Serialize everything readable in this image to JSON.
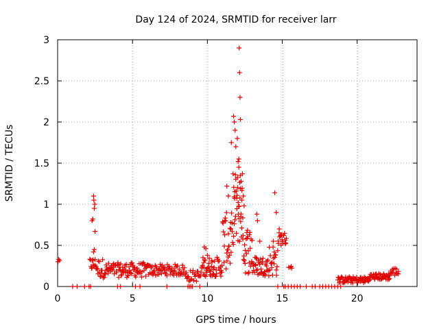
{
  "chart_data": {
    "type": "scatter",
    "title": "Day 124 of 2024, SRMTID for receiver larr",
    "xlabel": "GPS time / hours",
    "ylabel": "SRMTID / TECUs",
    "xlim": [
      0,
      24
    ],
    "ylim": [
      0,
      3
    ],
    "grid": true,
    "marker": "+",
    "series_color": "#e00000",
    "x_ticks": [
      0,
      5,
      10,
      15,
      20
    ],
    "x_tick_labels": [
      "0",
      "5",
      "10",
      "15",
      "20"
    ],
    "y_ticks": [
      0,
      0.5,
      1,
      1.5,
      2,
      2.5,
      3
    ],
    "y_tick_labels": [
      "0",
      "0.5",
      "1",
      "1.5",
      "2",
      "2.5",
      "3"
    ],
    "segments": [
      {
        "x0": 0.0,
        "x1": 0.15,
        "base": 0.31,
        "amp": 0.02,
        "n": 3
      },
      {
        "x0": 2.15,
        "x1": 2.6,
        "base": 0.27,
        "amp": 0.08,
        "n": 14
      },
      {
        "x0": 2.6,
        "x1": 3.1,
        "base": 0.22,
        "amp": 0.12,
        "n": 14
      },
      {
        "x0": 3.1,
        "x1": 6.0,
        "base": 0.2,
        "amp": 0.09,
        "n": 90
      },
      {
        "x0": 6.0,
        "x1": 8.5,
        "base": 0.2,
        "amp": 0.07,
        "n": 70
      },
      {
        "x0": 8.5,
        "x1": 9.6,
        "base": 0.13,
        "amp": 0.07,
        "n": 25
      },
      {
        "x0": 9.6,
        "x1": 11.0,
        "base": 0.24,
        "amp": 0.12,
        "n": 50
      },
      {
        "x0": 11.0,
        "x1": 11.7,
        "base": 0.55,
        "amp": 0.35,
        "n": 30
      },
      {
        "x0": 11.7,
        "x1": 12.4,
        "base": 0.95,
        "amp": 0.45,
        "n": 40
      },
      {
        "x0": 12.4,
        "x1": 13.0,
        "base": 0.45,
        "amp": 0.3,
        "n": 25
      },
      {
        "x0": 13.0,
        "x1": 14.1,
        "base": 0.25,
        "amp": 0.12,
        "n": 40
      },
      {
        "x0": 14.1,
        "x1": 14.7,
        "base": 0.32,
        "amp": 0.2,
        "n": 20
      },
      {
        "x0": 14.7,
        "x1": 15.3,
        "base": 0.58,
        "amp": 0.08,
        "n": 18
      },
      {
        "x0": 15.4,
        "x1": 15.7,
        "base": 0.24,
        "amp": 0.02,
        "n": 4
      },
      {
        "x0": 18.7,
        "x1": 19.5,
        "base": 0.08,
        "amp": 0.04,
        "n": 25
      },
      {
        "x0": 19.5,
        "x1": 20.8,
        "base": 0.08,
        "amp": 0.04,
        "n": 40
      },
      {
        "x0": 20.8,
        "x1": 22.2,
        "base": 0.12,
        "amp": 0.04,
        "n": 45
      },
      {
        "x0": 22.2,
        "x1": 22.8,
        "base": 0.18,
        "amp": 0.05,
        "n": 15
      }
    ],
    "points": [
      [
        2.3,
        0.8
      ],
      [
        2.35,
        0.82
      ],
      [
        2.4,
        1.1
      ],
      [
        2.42,
        1.05
      ],
      [
        2.45,
        0.95
      ],
      [
        2.48,
        1.0
      ],
      [
        2.5,
        0.67
      ],
      [
        2.4,
        0.42
      ],
      [
        2.45,
        0.45
      ],
      [
        9.8,
        0.48
      ],
      [
        9.9,
        0.46
      ],
      [
        10.0,
        0.38
      ],
      [
        11.3,
        1.22
      ],
      [
        11.4,
        1.1
      ],
      [
        11.6,
        1.75
      ],
      [
        11.75,
        2.07
      ],
      [
        11.8,
        2.0
      ],
      [
        11.85,
        1.9
      ],
      [
        11.9,
        1.7
      ],
      [
        12.0,
        1.8
      ],
      [
        12.05,
        1.52
      ],
      [
        12.1,
        1.55
      ],
      [
        12.12,
        2.9
      ],
      [
        12.15,
        2.6
      ],
      [
        12.18,
        2.3
      ],
      [
        12.2,
        2.03
      ],
      [
        12.1,
        1.45
      ],
      [
        12.2,
        1.35
      ],
      [
        12.25,
        1.28
      ],
      [
        12.3,
        1.05
      ],
      [
        12.4,
        1.1
      ],
      [
        12.45,
        0.98
      ],
      [
        13.3,
        0.88
      ],
      [
        13.35,
        0.8
      ],
      [
        13.5,
        0.55
      ],
      [
        14.4,
        0.55
      ],
      [
        14.5,
        1.14
      ],
      [
        14.6,
        0.9
      ],
      [
        14.8,
        0.7
      ],
      [
        14.9,
        0.62
      ]
    ],
    "zero_points": [
      1.0,
      1.3,
      1.8,
      2.1,
      2.2,
      4.0,
      4.2,
      5.2,
      5.5,
      7.3,
      8.7,
      8.8,
      8.9,
      9.0,
      9.5,
      14.7,
      15.1,
      15.2,
      15.4,
      15.6,
      15.8,
      16.0,
      16.2,
      16.6,
      17.0,
      17.2,
      17.5,
      17.7,
      17.9,
      18.1,
      18.3,
      18.5,
      18.7,
      18.9
    ]
  }
}
